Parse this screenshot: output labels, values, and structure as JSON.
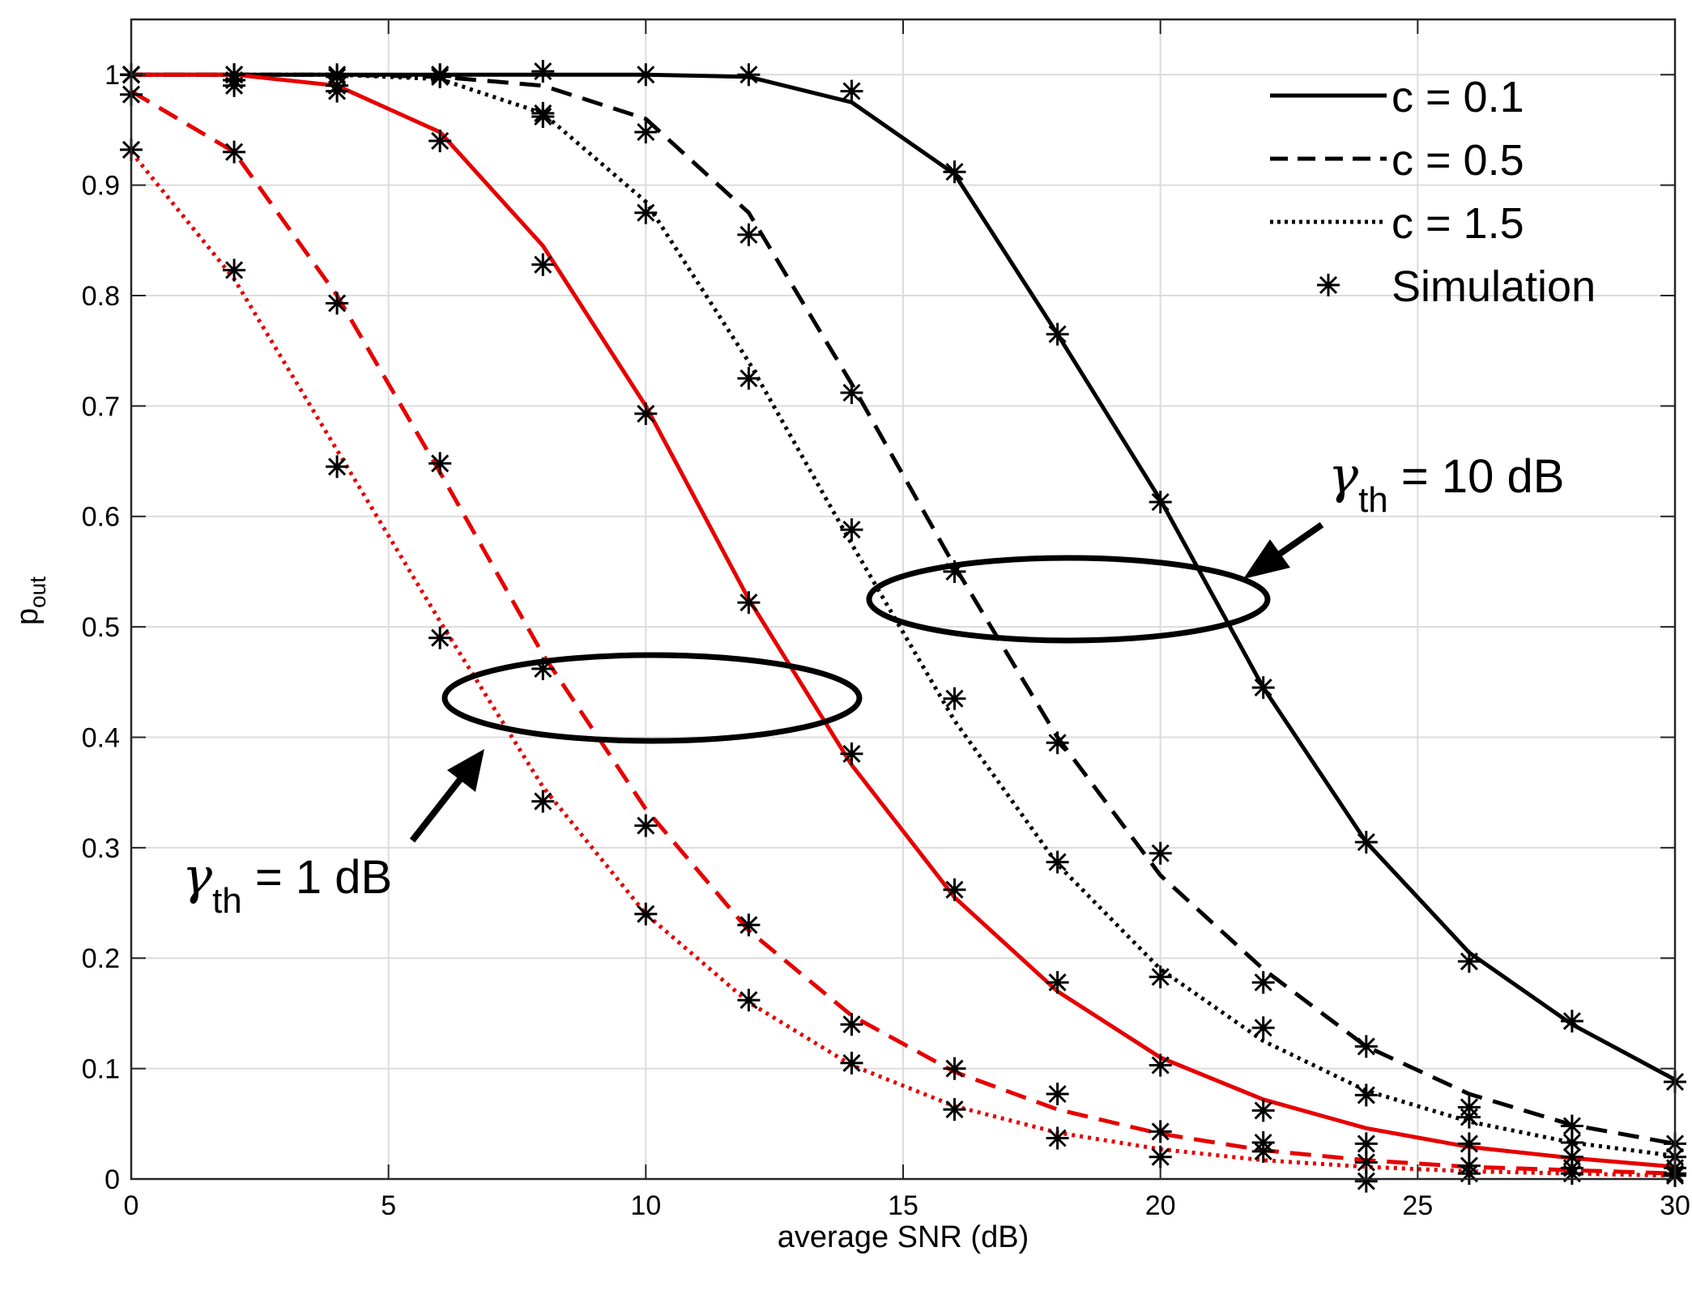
{
  "chart_data": {
    "type": "line",
    "title": "",
    "xlabel": "average SNR (dB)",
    "ylabel_main": "p",
    "ylabel_sub": "out",
    "xlim": [
      0,
      30
    ],
    "ylim": [
      0,
      1.05
    ],
    "grid": true,
    "legend_position": "top-right",
    "xticks": [
      0,
      5,
      10,
      15,
      20,
      25,
      30
    ],
    "xtick_labels": [
      "0",
      "5",
      "10",
      "15",
      "20",
      "25",
      "30"
    ],
    "yticks": [
      0,
      0.1,
      0.2,
      0.3,
      0.4,
      0.5,
      0.6,
      0.7,
      0.8,
      0.9,
      1
    ],
    "ytick_labels": [
      "0",
      "0.1",
      "0.2",
      "0.3",
      "0.4",
      "0.5",
      "0.6",
      "0.7",
      "0.8",
      "0.9",
      "1"
    ],
    "x": [
      0,
      2,
      4,
      6,
      8,
      10,
      12,
      14,
      16,
      18,
      20,
      22,
      24,
      26,
      28,
      30
    ],
    "legend": [
      {
        "label": "c = 0.1",
        "style": "solid"
      },
      {
        "label": "c = 0.5",
        "style": "dashed"
      },
      {
        "label": "c = 1.5",
        "style": "dotted"
      },
      {
        "label": "Simulation",
        "style": "marker"
      }
    ],
    "series": [
      {
        "name": "c = 0.1, γth = 10 dB",
        "color": "#000000",
        "style": "solid",
        "values": [
          1,
          1,
          1,
          1,
          1,
          1,
          0.998,
          0.975,
          0.91,
          0.765,
          0.615,
          0.445,
          0.305,
          0.205,
          0.14,
          0.09
        ],
        "sim": [
          1,
          1,
          1,
          1,
          1.003,
          1,
          1,
          0.985,
          0.912,
          0.765,
          0.613,
          0.445,
          0.305,
          0.197,
          0.143,
          0.088
        ]
      },
      {
        "name": "c = 0.5, γth = 10 dB",
        "color": "#000000",
        "style": "dashed",
        "values": [
          1,
          1,
          1,
          0.998,
          0.99,
          0.96,
          0.875,
          0.72,
          0.555,
          0.4,
          0.275,
          0.19,
          0.12,
          0.077,
          0.049,
          0.032
        ],
        "sim": [
          1,
          0.995,
          0.998,
          0.998,
          0.965,
          0.948,
          0.855,
          0.712,
          0.55,
          0.395,
          0.295,
          0.178,
          0.12,
          0.065,
          0.048,
          0.032
        ]
      },
      {
        "name": "c = 1.5, γth = 10 dB",
        "color": "#000000",
        "style": "dotted",
        "values": [
          1,
          1,
          1,
          0.996,
          0.965,
          0.885,
          0.74,
          0.575,
          0.415,
          0.285,
          0.19,
          0.125,
          0.08,
          0.052,
          0.033,
          0.021
        ],
        "sim": [
          1,
          0.99,
          0.985,
          1,
          0.962,
          0.875,
          0.725,
          0.588,
          0.435,
          0.287,
          0.183,
          0.137,
          0.076,
          0.056,
          0.033,
          0.02
        ]
      },
      {
        "name": "c = 0.1, γth = 1 dB",
        "color": "#e60000",
        "style": "solid",
        "values": [
          1,
          1,
          0.99,
          0.948,
          0.845,
          0.7,
          0.525,
          0.375,
          0.255,
          0.17,
          0.11,
          0.072,
          0.046,
          0.029,
          0.019,
          0.011
        ],
        "sim": [
          1,
          1,
          0.99,
          0.94,
          0.828,
          0.693,
          0.522,
          0.385,
          0.262,
          0.178,
          0.103,
          0.062,
          0.032,
          0.032,
          0.02,
          0.01
        ]
      },
      {
        "name": "c = 0.5, γth = 1 dB",
        "color": "#e60000",
        "style": "dashed",
        "values": [
          0.985,
          0.93,
          0.8,
          0.64,
          0.475,
          0.335,
          0.225,
          0.148,
          0.097,
          0.063,
          0.041,
          0.026,
          0.017,
          0.011,
          0.008,
          0.005
        ],
        "sim": [
          0.982,
          0.93,
          0.793,
          0.648,
          0.462,
          0.32,
          0.23,
          0.14,
          0.1,
          0.077,
          0.043,
          0.033,
          0.015,
          0.012,
          0.01,
          0.005
        ]
      },
      {
        "name": "c = 1.5, γth = 1 dB",
        "color": "#e60000",
        "style": "dotted",
        "values": [
          0.93,
          0.815,
          0.66,
          0.505,
          0.355,
          0.24,
          0.16,
          0.103,
          0.066,
          0.042,
          0.027,
          0.017,
          0.011,
          0.007,
          0.005,
          0.003
        ],
        "sim": [
          0.932,
          0.823,
          0.645,
          0.49,
          0.342,
          0.24,
          0.162,
          0.105,
          0.063,
          0.037,
          0.02,
          0.025,
          -0.002,
          0.005,
          0.005,
          0.003
        ]
      }
    ],
    "annotations": [
      {
        "name": "annotation-gamma-10db",
        "greek": "γ",
        "sub": "th",
        "text": " = 10 dB"
      },
      {
        "name": "annotation-gamma-1db",
        "greek": "γ",
        "sub": "th",
        "text": " = 1 dB"
      }
    ]
  }
}
